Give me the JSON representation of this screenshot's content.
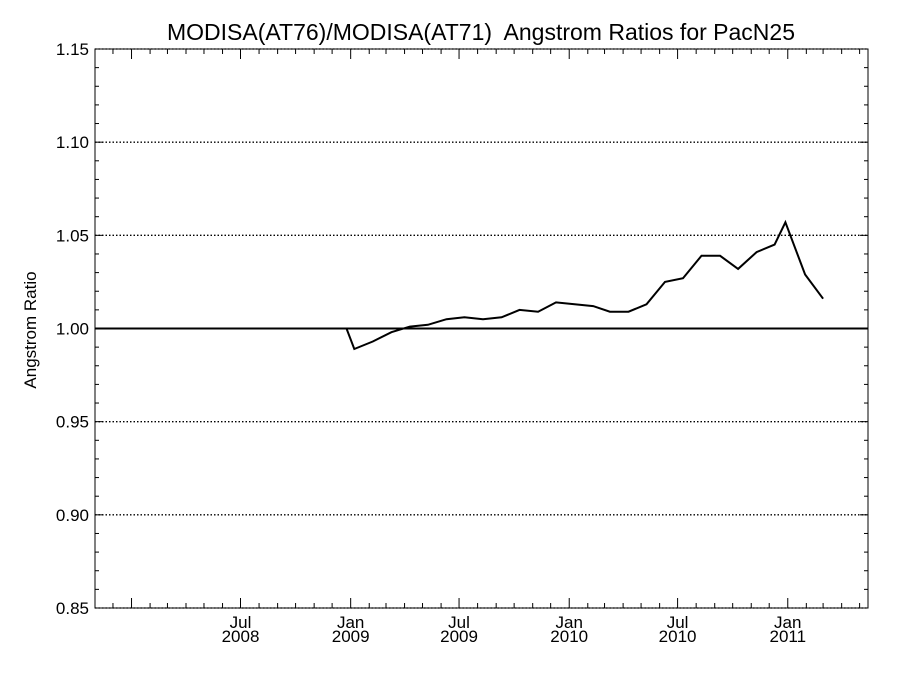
{
  "chart_data": {
    "type": "line",
    "title": "MODISA(AT76)/MODISA(AT71)  Angstrom Ratios for PacN25",
    "xlabel": "",
    "ylabel": "Angstrom Ratio",
    "ylim": [
      0.85,
      1.15
    ],
    "xlim": [
      "2007-11-01",
      "2011-05-15"
    ],
    "yticks": [
      "0.85",
      "0.90",
      "0.95",
      "1.00",
      "1.05",
      "1.10",
      "1.15"
    ],
    "xticks": [
      {
        "date": "2008-07-01",
        "month": "Jul",
        "year": "2008"
      },
      {
        "date": "2009-01-01",
        "month": "Jan",
        "year": "2009"
      },
      {
        "date": "2009-07-01",
        "month": "Jul",
        "year": "2009"
      },
      {
        "date": "2010-01-01",
        "month": "Jan",
        "year": "2010"
      },
      {
        "date": "2010-07-01",
        "month": "Jul",
        "year": "2010"
      },
      {
        "date": "2011-01-01",
        "month": "Jan",
        "year": "2011"
      }
    ],
    "grid": "dotted horizontal lines at major y ticks",
    "reference_line": 1.0,
    "series": [
      {
        "points": [
          {
            "x": "2008-11-25",
            "y": 1.0
          },
          {
            "x": "2008-12-25",
            "y": 1.0
          },
          {
            "x": "2009-01-07",
            "y": 0.989
          },
          {
            "x": "2009-02-07",
            "y": 0.993
          },
          {
            "x": "2009-03-10",
            "y": 0.998
          },
          {
            "x": "2009-04-10",
            "y": 1.001
          },
          {
            "x": "2009-05-10",
            "y": 1.002
          },
          {
            "x": "2009-06-10",
            "y": 1.005
          },
          {
            "x": "2009-07-10",
            "y": 1.006
          },
          {
            "x": "2009-08-10",
            "y": 1.005
          },
          {
            "x": "2009-09-10",
            "y": 1.006
          },
          {
            "x": "2009-10-10",
            "y": 1.01
          },
          {
            "x": "2009-11-10",
            "y": 1.009
          },
          {
            "x": "2009-12-10",
            "y": 1.014
          },
          {
            "x": "2010-01-10",
            "y": 1.013
          },
          {
            "x": "2010-02-10",
            "y": 1.012
          },
          {
            "x": "2010-03-10",
            "y": 1.009
          },
          {
            "x": "2010-04-10",
            "y": 1.009
          },
          {
            "x": "2010-05-10",
            "y": 1.013
          },
          {
            "x": "2010-06-10",
            "y": 1.025
          },
          {
            "x": "2010-07-10",
            "y": 1.027
          },
          {
            "x": "2010-08-10",
            "y": 1.039
          },
          {
            "x": "2010-09-10",
            "y": 1.039
          },
          {
            "x": "2010-10-10",
            "y": 1.032
          },
          {
            "x": "2010-11-10",
            "y": 1.041
          },
          {
            "x": "2010-12-10",
            "y": 1.045
          },
          {
            "x": "2010-12-28",
            "y": 1.057
          },
          {
            "x": "2011-01-30",
            "y": 1.029
          },
          {
            "x": "2011-03-01",
            "y": 1.016
          }
        ]
      }
    ]
  }
}
